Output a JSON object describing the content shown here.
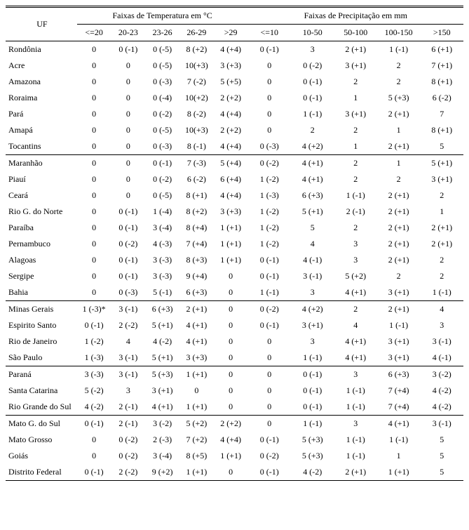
{
  "header": {
    "uf_label": "UF",
    "temp_group": "Faixas de Temperatura em °C",
    "prec_group": "Faixas de Precipitação em mm",
    "temp_cols": [
      "<=20",
      "20-23",
      "23-26",
      "26-29",
      ">29"
    ],
    "prec_cols": [
      "<=10",
      "10-50",
      "50-100",
      "100-150",
      ">150"
    ]
  },
  "regions": [
    {
      "rows": [
        {
          "uf": "Rondônia",
          "t": [
            "0",
            "0 (-1)",
            "0 (-5)",
            "8 (+2)",
            "4 (+4)"
          ],
          "p": [
            "0 (-1)",
            "3",
            "2 (+1)",
            "1 (-1)",
            "6 (+1)"
          ]
        },
        {
          "uf": "Acre",
          "t": [
            "0",
            "0",
            "0 (-5)",
            "10(+3)",
            "3 (+3)"
          ],
          "p": [
            "0",
            "0 (-2)",
            "3 (+1)",
            "2",
            "7 (+1)"
          ]
        },
        {
          "uf": "Amazona",
          "t": [
            "0",
            "0",
            "0 (-3)",
            "7 (-2)",
            "5 (+5)"
          ],
          "p": [
            "0",
            "0 (-1)",
            "2",
            "2",
            "8 (+1)"
          ]
        },
        {
          "uf": "Roraima",
          "t": [
            "0",
            "0",
            "0 (-4)",
            "10(+2)",
            "2 (+2)"
          ],
          "p": [
            "0",
            "0 (-1)",
            "1",
            "5 (+3)",
            "6 (-2)"
          ]
        },
        {
          "uf": "Pará",
          "t": [
            "0",
            "0",
            "0 (-2)",
            "8 (-2)",
            "4 (+4)"
          ],
          "p": [
            "0",
            "1 (-1)",
            "3 (+1)",
            "2 (+1)",
            "7"
          ]
        },
        {
          "uf": "Amapá",
          "t": [
            "0",
            "0",
            "0 (-5)",
            "10(+3)",
            "2 (+2)"
          ],
          "p": [
            "0",
            "2",
            "2",
            "1",
            "8 (+1)"
          ]
        },
        {
          "uf": "Tocantins",
          "t": [
            "0",
            "0",
            "0 (-3)",
            "8 (-1)",
            "4 (+4)"
          ],
          "p": [
            "0 (-3)",
            "4 (+2)",
            "1",
            "2 (+1)",
            "5"
          ]
        }
      ]
    },
    {
      "rows": [
        {
          "uf": "Maranhão",
          "t": [
            "0",
            "0",
            "0 (-1)",
            "7 (-3)",
            "5 (+4)"
          ],
          "p": [
            "0 (-2)",
            "4 (+1)",
            "2",
            "1",
            "5 (+1)"
          ]
        },
        {
          "uf": "Piauí",
          "t": [
            "0",
            "0",
            "0 (-2)",
            "6 (-2)",
            "6 (+4)"
          ],
          "p": [
            "1 (-2)",
            "4 (+1)",
            "2",
            "2",
            "3 (+1)"
          ]
        },
        {
          "uf": "Ceará",
          "t": [
            "0",
            "0",
            "0 (-5)",
            "8 (+1)",
            "4 (+4)"
          ],
          "p": [
            "1 (-3)",
            "6 (+3)",
            "1 (-1)",
            "2 (+1)",
            "2"
          ]
        },
        {
          "uf": "Rio G. do Norte",
          "t": [
            "0",
            "0 (-1)",
            "1 (-4)",
            "8 (+2)",
            "3 (+3)"
          ],
          "p": [
            "1 (-2)",
            "5 (+1)",
            "2 (-1)",
            "2 (+1)",
            "1"
          ]
        },
        {
          "uf": "Paraíba",
          "t": [
            "0",
            "0 (-1)",
            "3 (-4)",
            "8 (+4)",
            "1 (+1)"
          ],
          "p": [
            "1 (-2)",
            "5",
            "2",
            "2 (+1)",
            "2 (+1)"
          ]
        },
        {
          "uf": "Pernambuco",
          "t": [
            "0",
            "0 (-2)",
            "4 (-3)",
            "7 (+4)",
            "1 (+1)"
          ],
          "p": [
            "1 (-2)",
            "4",
            "3",
            "2 (+1)",
            "2 (+1)"
          ]
        },
        {
          "uf": "Alagoas",
          "t": [
            "0",
            "0 (-1)",
            "3 (-3)",
            "8 (+3)",
            "1 (+1)"
          ],
          "p": [
            "0 (-1)",
            "4 (-1)",
            "3",
            "2 (+1)",
            "2"
          ]
        },
        {
          "uf": "Sergipe",
          "t": [
            "0",
            "0 (-1)",
            "3 (-3)",
            "9 (+4)",
            "0"
          ],
          "p": [
            "0 (-1)",
            "3 (-1)",
            "5 (+2)",
            "2",
            "2"
          ]
        },
        {
          "uf": "Bahia",
          "t": [
            "0",
            "0 (-3)",
            "5 (-1)",
            "6 (+3)",
            "0"
          ],
          "p": [
            "1 (-1)",
            "3",
            "4 (+1)",
            "3 (+1)",
            "1 (-1)"
          ]
        }
      ]
    },
    {
      "rows": [
        {
          "uf": "Minas Gerais",
          "t": [
            "1 (-3)*",
            "3 (-1)",
            "6 (+3)",
            "2 (+1)",
            "0"
          ],
          "p": [
            "0 (-2)",
            "4 (+2)",
            "2",
            "2 (+1)",
            "4"
          ]
        },
        {
          "uf": "Espirito Santo",
          "t": [
            "0 (-1)",
            "2 (-2)",
            "5 (+1)",
            "4 (+1)",
            "0"
          ],
          "p": [
            "0 (-1)",
            "3 (+1)",
            "4",
            "1 (-1)",
            "3"
          ]
        },
        {
          "uf": "Rio de Janeiro",
          "t": [
            "1 (-2)",
            "4",
            "4 (-2)",
            "4 (+1)",
            "0"
          ],
          "p": [
            "0",
            "3",
            "4 (+1)",
            "3 (+1)",
            "3 (-1)"
          ]
        },
        {
          "uf": "São Paulo",
          "t": [
            "1 (-3)",
            "3 (-1)",
            "5 (+1)",
            "3 (+3)",
            "0"
          ],
          "p": [
            "0",
            "1 (-1)",
            "4 (+1)",
            "3 (+1)",
            "4 (-1)"
          ]
        }
      ]
    },
    {
      "rows": [
        {
          "uf": "Paraná",
          "t": [
            "3 (-3)",
            "3 (-1)",
            "5 (+3)",
            "1 (+1)",
            "0"
          ],
          "p": [
            "0",
            "0 (-1)",
            "3",
            "6 (+3)",
            "3 (-2)"
          ]
        },
        {
          "uf": "Santa Catarina",
          "t": [
            "5 (-2)",
            "3",
            "3 (+1)",
            "0",
            "0"
          ],
          "p": [
            "0",
            "0 (-1)",
            "1 (-1)",
            "7 (+4)",
            "4 (-2)"
          ]
        },
        {
          "uf": "Rio Grande do Sul",
          "t": [
            "4 (-2)",
            "2 (-1)",
            "4 (+1)",
            "1 (+1)",
            "0"
          ],
          "p": [
            "0",
            "0 (-1)",
            "1 (-1)",
            "7 (+4)",
            "4 (-2)"
          ]
        }
      ]
    },
    {
      "rows": [
        {
          "uf": "Mato G. do Sul",
          "t": [
            "0 (-1)",
            "2 (-1)",
            "3 (-2)",
            "5 (+2)",
            "2 (+2)"
          ],
          "p": [
            "0",
            "1 (-1)",
            "3",
            "4 (+1)",
            "3 (-1)"
          ]
        },
        {
          "uf": "Mato Grosso",
          "t": [
            "0",
            "0 (-2)",
            "2 (-3)",
            "7 (+2)",
            "4 (+4)"
          ],
          "p": [
            "0 (-1)",
            "5 (+3)",
            "1 (-1)",
            "1 (-1)",
            "5"
          ]
        },
        {
          "uf": "Goiás",
          "t": [
            "0",
            "0 (-2)",
            "3 (-4)",
            "8 (+5)",
            "1 (+1)"
          ],
          "p": [
            "0 (-2)",
            "5 (+3)",
            "1 (-1)",
            "1",
            "5"
          ]
        },
        {
          "uf": "Distrito Federal",
          "t": [
            "0 (-1)",
            "2 (-2)",
            "9 (+2)",
            "1 (+1)",
            "0"
          ],
          "p": [
            "0 (-1)",
            "4 (-2)",
            "2 (+1)",
            "1 (+1)",
            "5"
          ]
        }
      ]
    }
  ]
}
